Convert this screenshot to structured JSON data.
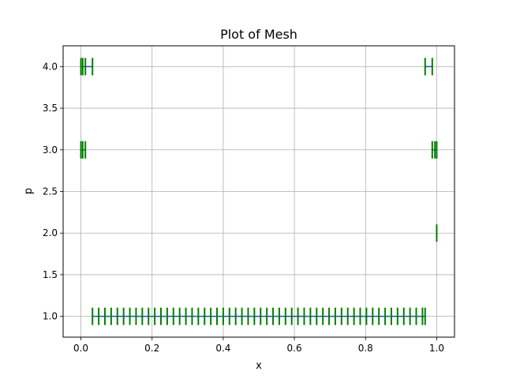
{
  "chart_data": {
    "type": "line",
    "title": "Plot of Mesh",
    "xlabel": "x",
    "ylabel": "p",
    "xlim": [
      -0.05,
      1.05
    ],
    "ylim": [
      0.75,
      4.25
    ],
    "grid": true,
    "x_ticks": [
      "0.0",
      "0.2",
      "0.4",
      "0.6",
      "0.8",
      "1.0"
    ],
    "x_tick_values": [
      0.0,
      0.2,
      0.4,
      0.6,
      0.8,
      1.0
    ],
    "y_ticks": [
      "1.0",
      "1.5",
      "2.0",
      "2.5",
      "3.0",
      "3.5",
      "4.0"
    ],
    "y_tick_values": [
      1.0,
      1.5,
      2.0,
      2.5,
      3.0,
      3.5,
      4.0
    ],
    "line_color": "#1f4fb4",
    "marker_color": "#008000",
    "series": [
      {
        "p": 4.0,
        "x": [
          0.0,
          0.005,
          0.0125,
          0.0325
        ]
      },
      {
        "p": 4.0,
        "x": [
          0.9675,
          0.9875
        ]
      },
      {
        "p": 3.0,
        "x": [
          0.0,
          0.005,
          0.0125
        ]
      },
      {
        "p": 3.0,
        "x": [
          0.9875,
          0.995,
          1.0
        ]
      },
      {
        "p": 2.0,
        "x": [
          1.0
        ]
      },
      {
        "p": 1.0,
        "x": [
          0.0325,
          0.05,
          0.0675,
          0.085,
          0.1025,
          0.12,
          0.1375,
          0.155,
          0.1725,
          0.19,
          0.2075,
          0.225,
          0.2425,
          0.26,
          0.2775,
          0.295,
          0.3125,
          0.33,
          0.3475,
          0.365,
          0.3825,
          0.4,
          0.4175,
          0.435,
          0.4525,
          0.47,
          0.4875,
          0.505,
          0.5225,
          0.54,
          0.5575,
          0.575,
          0.5925,
          0.61,
          0.6275,
          0.645,
          0.6625,
          0.68,
          0.6975,
          0.715,
          0.7325,
          0.75,
          0.7675,
          0.785,
          0.8025,
          0.82,
          0.8375,
          0.855,
          0.8725,
          0.89,
          0.9075,
          0.925,
          0.9425,
          0.96,
          0.9675
        ]
      }
    ]
  }
}
